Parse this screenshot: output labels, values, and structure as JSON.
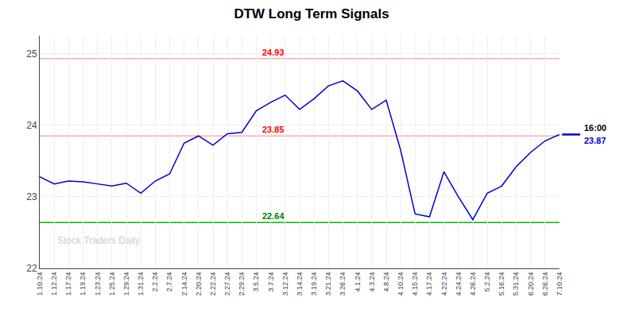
{
  "chart_data": {
    "type": "line",
    "title": "DTW Long Term Signals",
    "categories": [
      "1.10.24",
      "1.12.24",
      "1.17.24",
      "1.19.24",
      "1.23.24",
      "1.25.24",
      "1.29.24",
      "1.31.24",
      "2.2.24",
      "2.7.24",
      "2.14.24",
      "2.20.24",
      "2.22.24",
      "2.27.24",
      "2.29.24",
      "3.5.24",
      "3.7.24",
      "3.12.24",
      "3.14.24",
      "3.19.24",
      "3.21.24",
      "3.26.24",
      "4.1.24",
      "4.3.24",
      "4.8.24",
      "4.10.24",
      "4.15.24",
      "4.17.24",
      "4.22.24",
      "4.24.24",
      "4.26.24",
      "5.2.24",
      "5.16.24",
      "5.31.24",
      "6.20.24",
      "6.26.24",
      "7.10.24"
    ],
    "values": [
      23.28,
      23.18,
      23.22,
      23.21,
      23.18,
      23.15,
      23.19,
      23.05,
      23.22,
      23.32,
      23.75,
      23.85,
      23.72,
      23.88,
      23.9,
      24.2,
      24.32,
      24.42,
      24.22,
      24.37,
      24.55,
      24.62,
      24.48,
      24.22,
      24.35,
      23.65,
      22.76,
      22.72,
      23.35,
      23.0,
      22.68,
      23.05,
      23.15,
      23.42,
      23.62,
      23.78,
      23.87
    ],
    "color": "#0000cc",
    "ylim": [
      22.0,
      25.25
    ],
    "yticks": [
      22,
      23,
      24,
      25
    ],
    "grid": true,
    "reference_lines": [
      {
        "value": 24.93,
        "label": "24.93",
        "color": "#ffaaaa",
        "label_color": "red"
      },
      {
        "value": 23.85,
        "label": "23.85",
        "color": "#ffaaaa",
        "label_color": "red"
      },
      {
        "value": 22.64,
        "label": "22.64",
        "color": "#00bb00",
        "label_color": "green"
      }
    ],
    "last_price": {
      "value": 23.87,
      "label": "23.87",
      "time": "16:00"
    },
    "watermark": "Stock Traders Daily"
  }
}
